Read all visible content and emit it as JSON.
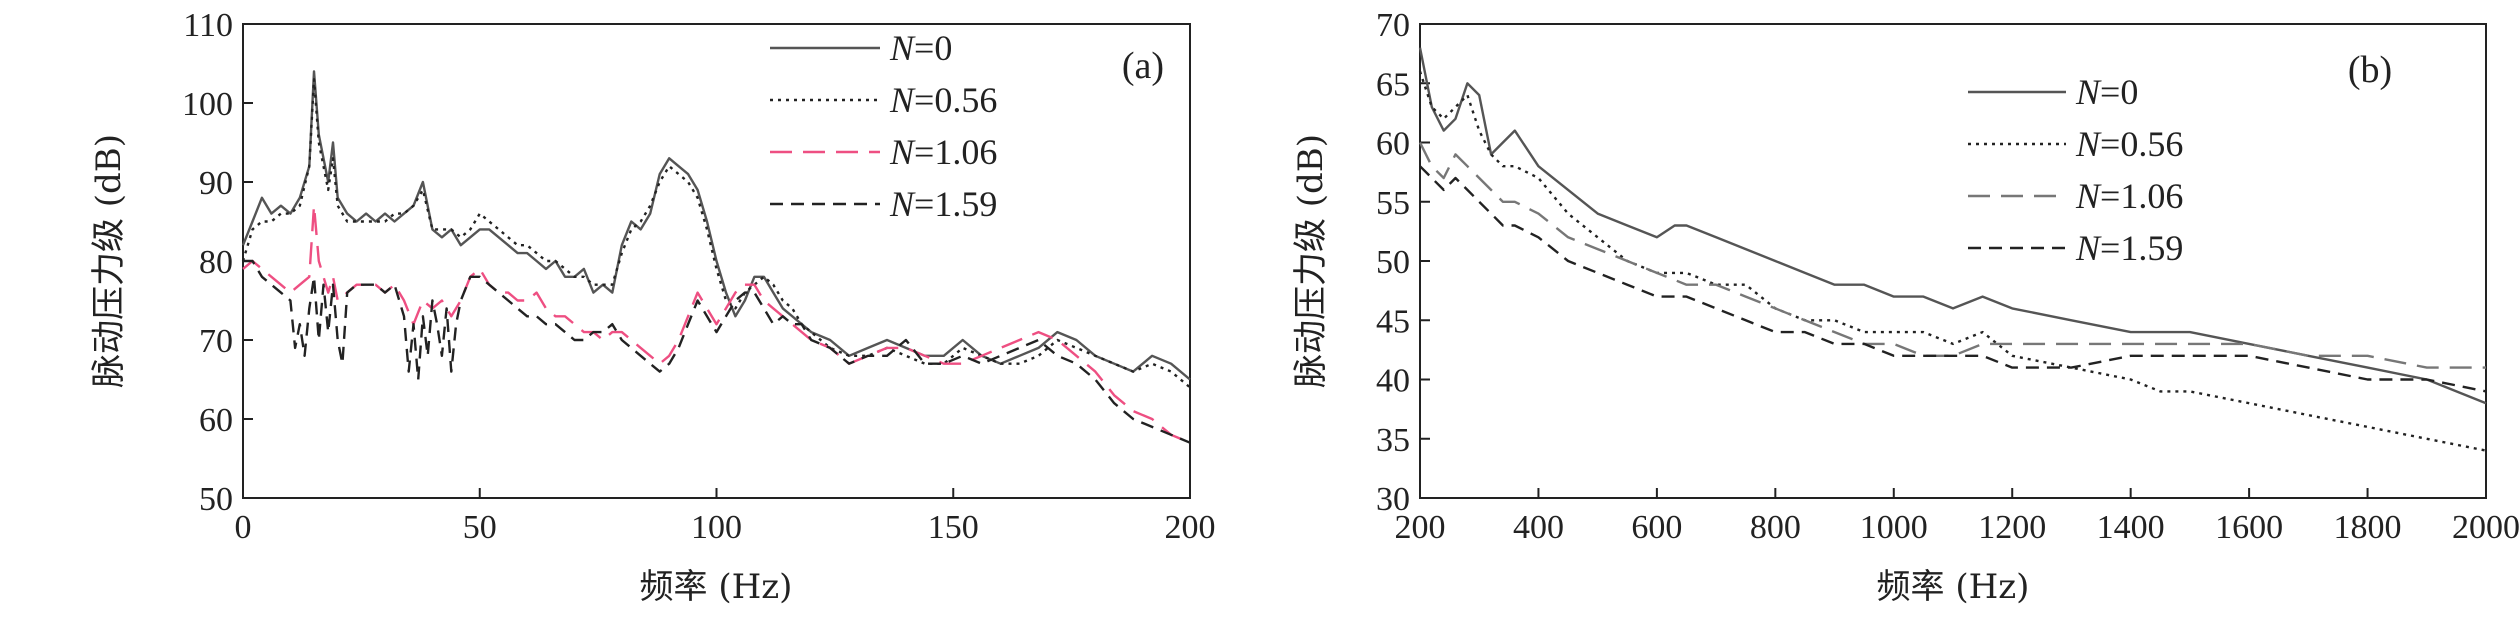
{
  "chart_data": [
    {
      "type": "line",
      "panel_label": "(a)",
      "xlabel": "频率 (Hz)",
      "ylabel": "脉动压力级 (dB)",
      "xlim": [
        0,
        200
      ],
      "ylim": [
        50,
        110
      ],
      "xticks": [
        0,
        50,
        100,
        150,
        200
      ],
      "yticks": [
        50,
        60,
        70,
        80,
        90,
        100,
        110
      ],
      "legend": {
        "placement": "top-right"
      },
      "series": [
        {
          "name": "N=0",
          "name_italic": "N",
          "name_rest": "=0",
          "color": "#555555",
          "dash": "solid",
          "x": [
            0,
            2,
            4,
            6,
            8,
            10,
            12,
            14,
            15,
            16,
            18,
            19,
            20,
            22,
            24,
            26,
            28,
            30,
            32,
            34,
            36,
            38,
            40,
            42,
            44,
            46,
            48,
            50,
            52,
            54,
            56,
            58,
            60,
            62,
            64,
            66,
            68,
            70,
            72,
            74,
            76,
            78,
            80,
            82,
            84,
            86,
            88,
            90,
            92,
            94,
            96,
            98,
            100,
            102,
            104,
            106,
            108,
            110,
            112,
            114,
            116,
            118,
            120,
            124,
            128,
            132,
            136,
            140,
            144,
            148,
            152,
            156,
            160,
            164,
            168,
            172,
            176,
            180,
            184,
            188,
            192,
            196,
            200
          ],
          "y": [
            82,
            85,
            88,
            86,
            87,
            86,
            88,
            92,
            104,
            96,
            90,
            95,
            88,
            86,
            85,
            86,
            85,
            86,
            85,
            86,
            87,
            90,
            84,
            83,
            84,
            82,
            83,
            84,
            84,
            83,
            82,
            81,
            81,
            80,
            79,
            80,
            78,
            78,
            79,
            76,
            77,
            76,
            82,
            85,
            84,
            86,
            91,
            93,
            92,
            91,
            89,
            85,
            80,
            76,
            73,
            75,
            78,
            78,
            76,
            74,
            73,
            72,
            71,
            70,
            68,
            69,
            70,
            69,
            68,
            68,
            70,
            68,
            67,
            68,
            69,
            71,
            70,
            68,
            67,
            66,
            68,
            67,
            65
          ]
        },
        {
          "name": "N=0.56",
          "name_italic": "N",
          "name_rest": "=0.56",
          "color": "#222222",
          "dash": "dotted",
          "x": [
            0,
            2,
            4,
            6,
            8,
            10,
            12,
            14,
            15,
            16,
            18,
            19,
            20,
            22,
            24,
            26,
            28,
            30,
            32,
            34,
            36,
            38,
            40,
            42,
            44,
            46,
            48,
            50,
            52,
            54,
            56,
            58,
            60,
            62,
            64,
            66,
            68,
            70,
            72,
            74,
            76,
            78,
            80,
            82,
            84,
            86,
            88,
            90,
            92,
            94,
            96,
            98,
            100,
            102,
            104,
            106,
            108,
            110,
            112,
            114,
            116,
            118,
            120,
            124,
            128,
            132,
            136,
            140,
            144,
            148,
            152,
            156,
            160,
            164,
            168,
            172,
            176,
            180,
            184,
            188,
            192,
            196,
            200
          ],
          "y": [
            80,
            84,
            85,
            85,
            86,
            86,
            87,
            92,
            103,
            95,
            89,
            93,
            87,
            85,
            85,
            85,
            85,
            85,
            86,
            86,
            87,
            89,
            84,
            84,
            84,
            83,
            84,
            86,
            85,
            84,
            83,
            82,
            82,
            81,
            80,
            80,
            79,
            78,
            78,
            77,
            77,
            77,
            81,
            84,
            85,
            87,
            90,
            92,
            91,
            90,
            88,
            84,
            79,
            75,
            74,
            76,
            77,
            78,
            77,
            75,
            74,
            72,
            71,
            69,
            68,
            68,
            69,
            68,
            67,
            67,
            69,
            68,
            67,
            67,
            68,
            70,
            69,
            68,
            67,
            66,
            67,
            66,
            64
          ]
        },
        {
          "name": "N=1.06",
          "name_italic": "N",
          "name_rest": "=1.06",
          "color": "#ee4f82",
          "dash": "longdash",
          "x": [
            0,
            2,
            4,
            6,
            8,
            10,
            12,
            14,
            15,
            16,
            18,
            19,
            20,
            22,
            24,
            26,
            28,
            30,
            32,
            34,
            36,
            38,
            40,
            42,
            44,
            46,
            48,
            50,
            52,
            54,
            56,
            58,
            60,
            62,
            64,
            66,
            68,
            70,
            72,
            74,
            76,
            78,
            80,
            82,
            84,
            86,
            88,
            90,
            92,
            94,
            96,
            98,
            100,
            102,
            104,
            106,
            108,
            110,
            112,
            114,
            116,
            118,
            120,
            124,
            128,
            132,
            136,
            140,
            144,
            148,
            152,
            156,
            160,
            164,
            168,
            172,
            176,
            180,
            184,
            188,
            192,
            196,
            200
          ],
          "y": [
            79,
            80,
            79,
            78,
            77,
            76,
            77,
            78,
            87,
            80,
            76,
            78,
            75,
            76,
            77,
            77,
            77,
            76,
            77,
            75,
            72,
            75,
            74,
            75,
            73,
            75,
            78,
            79,
            77,
            76,
            76,
            75,
            75,
            76,
            74,
            73,
            73,
            72,
            71,
            71,
            70,
            71,
            71,
            70,
            69,
            68,
            67,
            68,
            70,
            73,
            76,
            74,
            72,
            74,
            76,
            77,
            77,
            75,
            74,
            73,
            72,
            71,
            70,
            69,
            67,
            68,
            69,
            69,
            68,
            67,
            67,
            68,
            69,
            70,
            71,
            70,
            68,
            66,
            63,
            61,
            60,
            58,
            57
          ]
        },
        {
          "name": "N=1.59",
          "name_italic": "N",
          "name_rest": "=1.59",
          "color": "#222222",
          "dash": "dashed",
          "x": [
            0,
            2,
            4,
            6,
            8,
            10,
            11,
            12,
            13,
            14,
            15,
            16,
            17,
            18,
            19,
            20,
            21,
            22,
            24,
            26,
            28,
            30,
            32,
            34,
            35,
            36,
            37,
            38,
            39,
            40,
            41,
            42,
            43,
            44,
            45,
            46,
            48,
            50,
            52,
            54,
            56,
            58,
            60,
            62,
            64,
            66,
            68,
            70,
            72,
            74,
            76,
            78,
            80,
            82,
            84,
            86,
            88,
            90,
            92,
            94,
            96,
            98,
            100,
            102,
            104,
            106,
            108,
            110,
            112,
            114,
            116,
            118,
            120,
            124,
            128,
            132,
            136,
            140,
            144,
            148,
            152,
            156,
            160,
            164,
            168,
            172,
            176,
            180,
            184,
            188,
            192,
            196,
            200
          ],
          "y": [
            80,
            80,
            78,
            77,
            76,
            75,
            69,
            72,
            68,
            74,
            78,
            70,
            77,
            71,
            77,
            70,
            67,
            76,
            77,
            77,
            77,
            76,
            77,
            73,
            66,
            72,
            65,
            73,
            68,
            75,
            72,
            68,
            74,
            66,
            72,
            75,
            78,
            78,
            77,
            76,
            75,
            74,
            73,
            73,
            72,
            72,
            71,
            70,
            70,
            71,
            71,
            72,
            70,
            69,
            68,
            67,
            66,
            67,
            69,
            72,
            75,
            73,
            71,
            73,
            75,
            76,
            76,
            74,
            72,
            73,
            72,
            72,
            70,
            69,
            67,
            68,
            68,
            70,
            67,
            67,
            68,
            67,
            68,
            69,
            70,
            68,
            67,
            65,
            62,
            60,
            59,
            58,
            57
          ]
        }
      ]
    },
    {
      "type": "line",
      "panel_label": "(b)",
      "xlabel": "频率 (Hz)",
      "ylabel": "脉动压力级 (dB)",
      "xlim": [
        200,
        2000
      ],
      "ylim": [
        30,
        70
      ],
      "xticks": [
        200,
        400,
        600,
        800,
        1000,
        1200,
        1400,
        1600,
        1800,
        2000
      ],
      "yticks": [
        30,
        35,
        40,
        45,
        50,
        55,
        60,
        65,
        70
      ],
      "legend": {
        "placement": "top-right"
      },
      "series": [
        {
          "name": "N=0",
          "name_italic": "N",
          "name_rest": "=0",
          "color": "#555555",
          "dash": "solid",
          "x": [
            200,
            220,
            240,
            260,
            280,
            300,
            320,
            340,
            360,
            400,
            450,
            500,
            550,
            600,
            630,
            650,
            700,
            750,
            800,
            850,
            900,
            950,
            1000,
            1050,
            1100,
            1150,
            1200,
            1300,
            1400,
            1500,
            1600,
            1700,
            1800,
            1900,
            2000
          ],
          "y": [
            68,
            63,
            61,
            62,
            65,
            64,
            59,
            60,
            61,
            58,
            56,
            54,
            53,
            52,
            53,
            53,
            52,
            51,
            50,
            49,
            48,
            48,
            47,
            47,
            46,
            47,
            46,
            45,
            44,
            44,
            43,
            42,
            41,
            40,
            38
          ]
        },
        {
          "name": "N=0.56",
          "name_italic": "N",
          "name_rest": "=0.56",
          "color": "#222222",
          "dash": "dotted",
          "x": [
            200,
            220,
            240,
            260,
            280,
            300,
            320,
            340,
            360,
            400,
            450,
            500,
            550,
            600,
            650,
            700,
            750,
            800,
            850,
            900,
            950,
            1000,
            1050,
            1100,
            1150,
            1200,
            1300,
            1400,
            1450,
            1500,
            1600,
            1700,
            1800,
            1900,
            2000
          ],
          "y": [
            66,
            63,
            62,
            63,
            64,
            61,
            59,
            58,
            58,
            57,
            54,
            52,
            50,
            49,
            49,
            48,
            48,
            46,
            45,
            45,
            44,
            44,
            44,
            43,
            44,
            42,
            41,
            40,
            39,
            39,
            38,
            37,
            36,
            35,
            34
          ]
        },
        {
          "name": "N=1.06",
          "name_italic": "N",
          "name_rest": "=1.06",
          "color": "#777777",
          "dash": "longdash",
          "x": [
            200,
            220,
            240,
            260,
            280,
            300,
            320,
            340,
            360,
            400,
            450,
            500,
            550,
            600,
            650,
            700,
            750,
            800,
            850,
            900,
            950,
            1000,
            1050,
            1100,
            1150,
            1200,
            1300,
            1400,
            1500,
            1600,
            1700,
            1800,
            1900,
            2000
          ],
          "y": [
            60,
            58,
            57,
            59,
            58,
            57,
            56,
            55,
            55,
            54,
            52,
            51,
            50,
            49,
            48,
            48,
            47,
            46,
            45,
            44,
            43,
            43,
            42,
            42,
            43,
            43,
            43,
            43,
            43,
            43,
            42,
            42,
            41,
            41
          ]
        },
        {
          "name": "N=1.59",
          "name_italic": "N",
          "name_rest": "=1.59",
          "color": "#222222",
          "dash": "dashed",
          "x": [
            200,
            220,
            240,
            260,
            280,
            300,
            320,
            340,
            360,
            400,
            450,
            500,
            550,
            600,
            650,
            700,
            750,
            800,
            850,
            900,
            950,
            1000,
            1050,
            1100,
            1150,
            1200,
            1300,
            1400,
            1500,
            1600,
            1700,
            1800,
            1900,
            2000
          ],
          "y": [
            58,
            57,
            56,
            57,
            56,
            55,
            54,
            53,
            53,
            52,
            50,
            49,
            48,
            47,
            47,
            46,
            45,
            44,
            44,
            43,
            43,
            42,
            42,
            42,
            42,
            41,
            41,
            42,
            42,
            42,
            41,
            40,
            40,
            39
          ]
        }
      ]
    }
  ]
}
